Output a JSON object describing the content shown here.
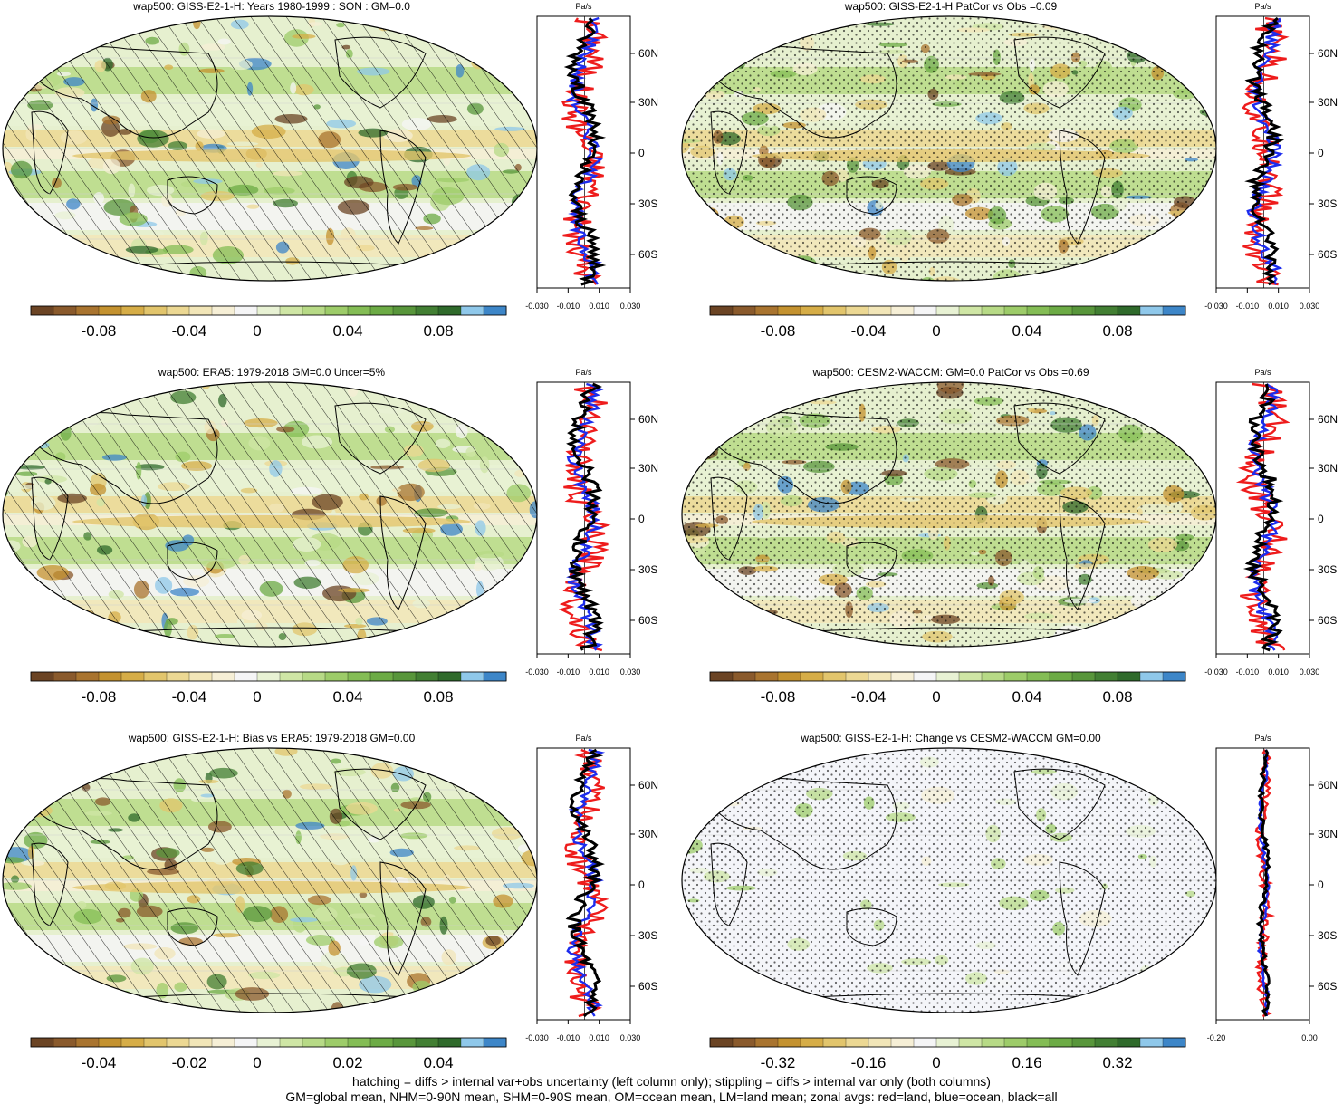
{
  "zonal_unit": "Pa/s",
  "lat_labels": [
    "60N",
    "30N",
    "0",
    "30S",
    "60S"
  ],
  "colorbar_colors": [
    "#6b4424",
    "#8a5a2c",
    "#a9742f",
    "#c4922f",
    "#d6ad47",
    "#e2c56c",
    "#ecd893",
    "#f2e6b8",
    "#f6efd6",
    "#f5f5f6",
    "#e8f2d4",
    "#cfe6a5",
    "#b7da86",
    "#9dcc69",
    "#84bd55",
    "#6cab45",
    "#58963b",
    "#427f33",
    "#2f6a2b",
    "#8fc8ea",
    "#3d86c8"
  ],
  "line_colors": {
    "land": "#ee1c1c",
    "ocean": "#1c2cee",
    "all": "#000000"
  },
  "panels": [
    {
      "title": "wap500: GISS-E2-1-H: Years 1980-1999 : SON : GM=0.0",
      "colorbar_labels": [
        "-0.08",
        "-0.04",
        "0",
        "0.04",
        "0.08"
      ],
      "zonal_ticks": [
        "-0.030",
        "-0.010",
        "0.010",
        "0.030"
      ],
      "overlay": "hatching"
    },
    {
      "title": "wap500: GISS-E2-1-H PatCor vs Obs =0.09",
      "colorbar_labels": [
        "-0.08",
        "-0.04",
        "0",
        "0.04",
        "0.08"
      ],
      "zonal_ticks": [
        "-0.030",
        "-0.010",
        "0.010",
        "0.030"
      ],
      "overlay": "stippling"
    },
    {
      "title": "wap500: ERA5: 1979-2018 GM=0.0 Uncer=5%",
      "colorbar_labels": [
        "-0.08",
        "-0.04",
        "0",
        "0.04",
        "0.08"
      ],
      "zonal_ticks": [
        "-0.030",
        "-0.010",
        "0.010",
        "0.030"
      ],
      "overlay": "hatching"
    },
    {
      "title": "wap500: CESM2-WACCM: GM=0.0 PatCor vs Obs =0.69",
      "colorbar_labels": [
        "-0.08",
        "-0.04",
        "0",
        "0.04",
        "0.08"
      ],
      "zonal_ticks": [
        "-0.030",
        "-0.010",
        "0.010",
        "0.030"
      ],
      "overlay": "stippling"
    },
    {
      "title": "wap500: GISS-E2-1-H: Bias vs ERA5: 1979-2018  GM=0.00",
      "colorbar_labels": [
        "-0.04",
        "-0.02",
        "0",
        "0.02",
        "0.04"
      ],
      "zonal_ticks": [
        "-0.030",
        "-0.010",
        "0.010",
        "0.030"
      ],
      "overlay": "hatching"
    },
    {
      "title": "wap500: GISS-E2-1-H: Change vs CESM2-WACCM GM=0.00",
      "colorbar_labels": [
        "-0.32",
        "-0.16",
        "0",
        "0.16",
        "0.32"
      ],
      "zonal_ticks": [
        "-0.20",
        "0.00"
      ],
      "overlay": "stippling"
    }
  ],
  "footnotes": [
    "hatching = diffs > internal var+obs uncertainty (left column only); stippling = diffs > internal var only (both columns)",
    "GM=global mean, NHM=0-90N mean, SHM=0-90S mean, OM=ocean mean, LM=land mean; zonal avgs: red=land, blue=ocean, black=all"
  ]
}
